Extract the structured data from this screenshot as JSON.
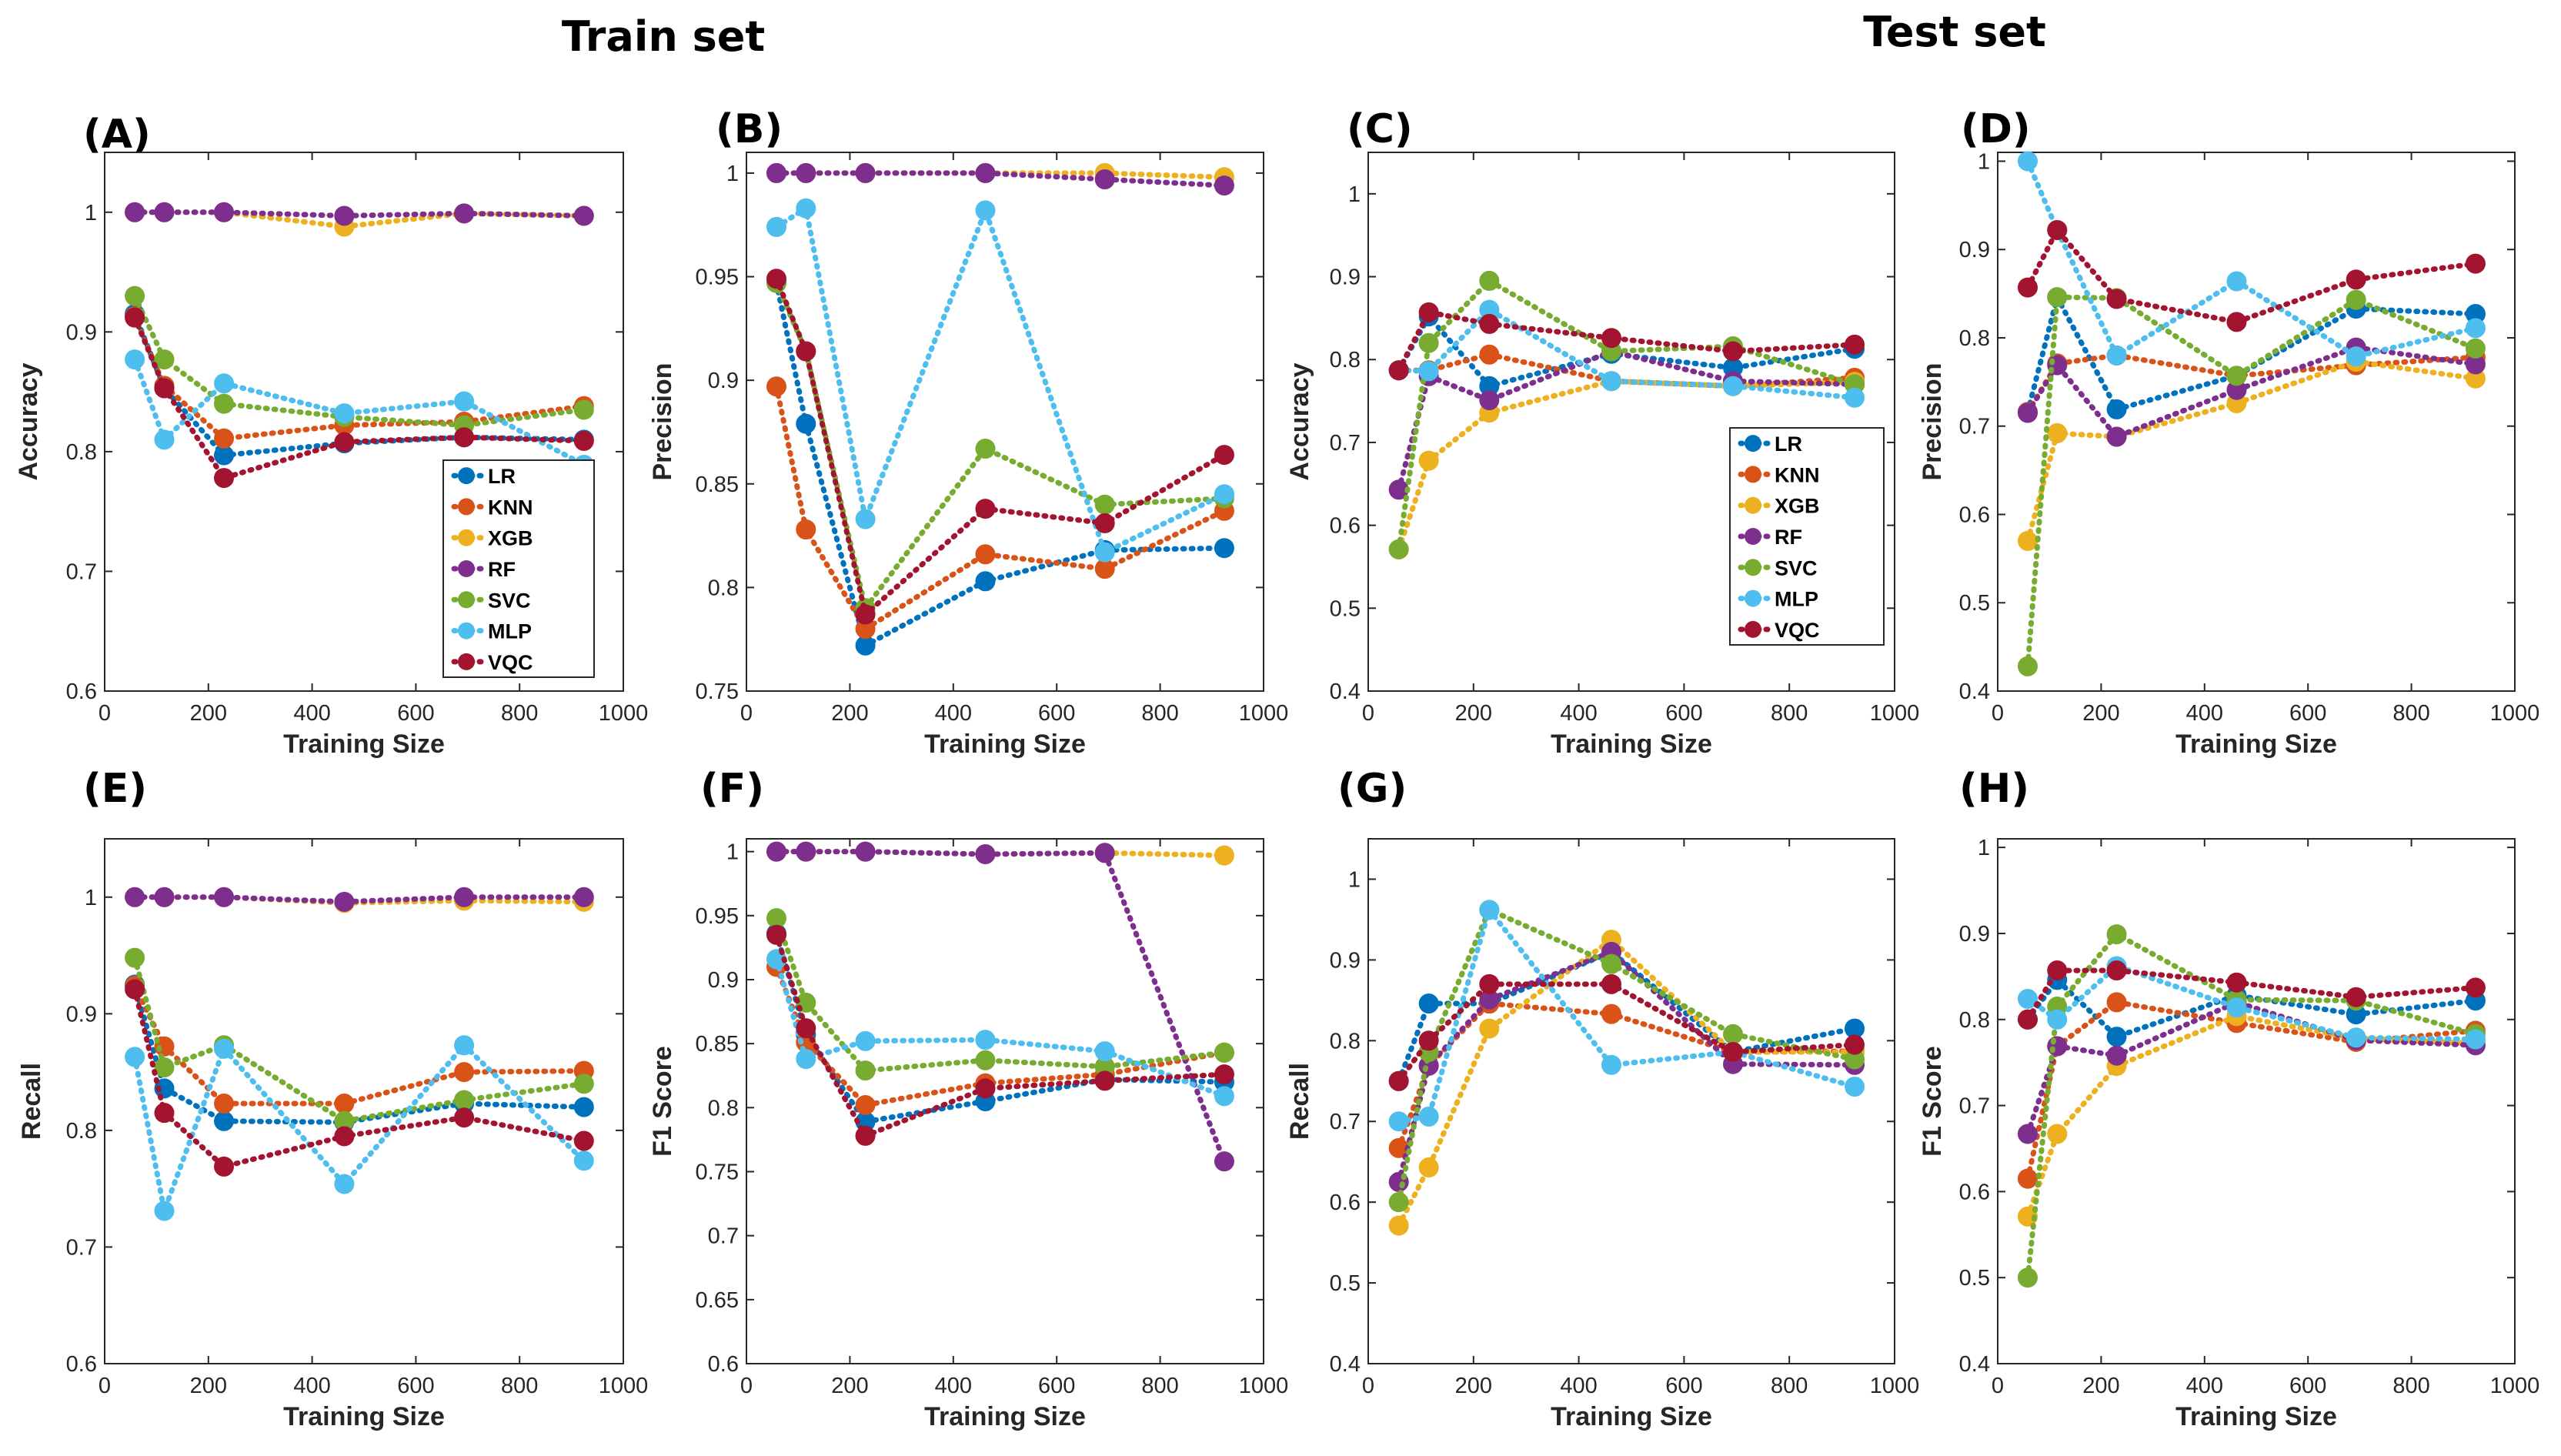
{
  "section_titles": {
    "train": "Train set",
    "test": "Test set"
  },
  "colors": {
    "LR": "#0072BD",
    "KNN": "#D95319",
    "XGB": "#EDB120",
    "RF": "#7E2F8E",
    "SVC": "#77AC30",
    "MLP": "#4DBEEE",
    "VQC": "#A2142F"
  },
  "chart_data": [
    {
      "type": "line",
      "id": "A",
      "label": "(A)",
      "xlabel": "Training Size",
      "ylabel": "Accuracy",
      "xlim": [
        0,
        1000
      ],
      "ylim": [
        0.6,
        1.05
      ],
      "xticks": [
        "0",
        "200",
        "400",
        "600",
        "800",
        "1000"
      ],
      "yticks": [
        "0.6",
        "0.7",
        "0.8",
        "0.9",
        "1"
      ],
      "legend": "lower-right",
      "x": [
        58,
        115,
        230,
        462,
        693,
        924
      ],
      "series": [
        {
          "name": "LR",
          "values": [
            0.915,
            0.853,
            0.797,
            0.807,
            0.812,
            0.81
          ]
        },
        {
          "name": "KNN",
          "values": [
            0.913,
            0.855,
            0.811,
            0.822,
            0.825,
            0.838
          ]
        },
        {
          "name": "XGB",
          "values": [
            1.0,
            1.0,
            1.0,
            0.988,
            0.999,
            0.997
          ]
        },
        {
          "name": "RF",
          "values": [
            1.0,
            1.0,
            1.0,
            0.997,
            0.999,
            0.997
          ]
        },
        {
          "name": "SVC",
          "values": [
            0.93,
            0.877,
            0.84,
            0.829,
            0.822,
            0.835
          ]
        },
        {
          "name": "MLP",
          "values": [
            0.877,
            0.81,
            0.857,
            0.832,
            0.842,
            0.789
          ]
        },
        {
          "name": "VQC",
          "values": [
            0.912,
            0.853,
            0.778,
            0.808,
            0.812,
            0.809
          ]
        }
      ]
    },
    {
      "type": "line",
      "id": "B",
      "label": "(B)",
      "xlabel": "Training Size",
      "ylabel": "Precision",
      "xlim": [
        0,
        1000
      ],
      "ylim": [
        0.75,
        1.01
      ],
      "xticks": [
        "0",
        "200",
        "400",
        "600",
        "800",
        "1000"
      ],
      "yticks": [
        "0.75",
        "0.8",
        "0.85",
        "0.9",
        "0.95",
        "1"
      ],
      "x": [
        58,
        115,
        230,
        462,
        693,
        924
      ],
      "series": [
        {
          "name": "LR",
          "values": [
            0.947,
            0.879,
            0.772,
            0.803,
            0.818,
            0.819
          ]
        },
        {
          "name": "KNN",
          "values": [
            0.897,
            0.828,
            0.78,
            0.816,
            0.809,
            0.837
          ]
        },
        {
          "name": "XGB",
          "values": [
            1.0,
            1.0,
            1.0,
            1.0,
            1.0,
            0.998
          ]
        },
        {
          "name": "RF",
          "values": [
            1.0,
            1.0,
            1.0,
            1.0,
            0.997,
            0.994
          ]
        },
        {
          "name": "SVC",
          "values": [
            0.947,
            0.914,
            0.79,
            0.867,
            0.84,
            0.843
          ]
        },
        {
          "name": "MLP",
          "values": [
            0.974,
            0.983,
            0.833,
            0.982,
            0.817,
            0.845
          ]
        },
        {
          "name": "VQC",
          "values": [
            0.949,
            0.914,
            0.787,
            0.838,
            0.831,
            0.864
          ]
        }
      ]
    },
    {
      "type": "line",
      "id": "C",
      "label": "(C)",
      "xlabel": "Training Size",
      "ylabel": "Accuracy",
      "xlim": [
        0,
        1000
      ],
      "ylim": [
        0.4,
        1.05
      ],
      "xticks": [
        "0",
        "200",
        "400",
        "600",
        "800",
        "1000"
      ],
      "yticks": [
        "0.4",
        "0.5",
        "0.6",
        "0.7",
        "0.8",
        "0.9",
        "1"
      ],
      "legend": "center-right",
      "x": [
        58,
        115,
        230,
        462,
        693,
        924
      ],
      "series": [
        {
          "name": "LR",
          "values": [
            0.787,
            0.852,
            0.768,
            0.807,
            0.79,
            0.813
          ]
        },
        {
          "name": "KNN",
          "values": [
            0.787,
            0.787,
            0.806,
            0.774,
            0.768,
            0.778
          ]
        },
        {
          "name": "XGB",
          "values": [
            0.571,
            0.678,
            0.736,
            0.774,
            0.768,
            0.773
          ]
        },
        {
          "name": "RF",
          "values": [
            0.643,
            0.78,
            0.751,
            0.81,
            0.774,
            0.77
          ]
        },
        {
          "name": "SVC",
          "values": [
            0.571,
            0.82,
            0.895,
            0.81,
            0.816,
            0.77
          ]
        },
        {
          "name": "MLP",
          "values": [
            0.787,
            0.786,
            0.86,
            0.774,
            0.768,
            0.754
          ]
        },
        {
          "name": "VQC",
          "values": [
            0.787,
            0.857,
            0.843,
            0.826,
            0.81,
            0.818
          ]
        }
      ]
    },
    {
      "type": "line",
      "id": "D",
      "label": "(D)",
      "xlabel": "Training Size",
      "ylabel": "Precision",
      "xlim": [
        0,
        1000
      ],
      "ylim": [
        0.4,
        1.01
      ],
      "xticks": [
        "0",
        "200",
        "400",
        "600",
        "800",
        "1000"
      ],
      "yticks": [
        "0.4",
        "0.5",
        "0.6",
        "0.7",
        "0.8",
        "0.9",
        "1"
      ],
      "x": [
        58,
        115,
        230,
        462,
        693,
        924
      ],
      "series": [
        {
          "name": "LR",
          "values": [
            0.716,
            0.846,
            0.719,
            0.757,
            0.833,
            0.827
          ]
        },
        {
          "name": "KNN",
          "values": [
            0.716,
            0.771,
            0.78,
            0.757,
            0.769,
            0.778
          ]
        },
        {
          "name": "XGB",
          "values": [
            0.57,
            0.692,
            0.688,
            0.726,
            0.773,
            0.754
          ]
        },
        {
          "name": "RF",
          "values": [
            0.715,
            0.769,
            0.688,
            0.741,
            0.789,
            0.77
          ]
        },
        {
          "name": "SVC",
          "values": [
            0.428,
            0.846,
            0.845,
            0.757,
            0.843,
            0.788
          ]
        },
        {
          "name": "MLP",
          "values": [
            1.0,
            0.922,
            0.78,
            0.864,
            0.779,
            0.811
          ]
        },
        {
          "name": "VQC",
          "values": [
            0.857,
            0.922,
            0.844,
            0.818,
            0.866,
            0.884
          ]
        }
      ]
    },
    {
      "type": "line",
      "id": "E",
      "label": "(E)",
      "xlabel": "Training Size",
      "ylabel": "Recall",
      "xlim": [
        0,
        1000
      ],
      "ylim": [
        0.6,
        1.05
      ],
      "xticks": [
        "0",
        "200",
        "400",
        "600",
        "800",
        "1000"
      ],
      "yticks": [
        "0.6",
        "0.7",
        "0.8",
        "0.9",
        "1"
      ],
      "x": [
        58,
        115,
        230,
        462,
        693,
        924
      ],
      "series": [
        {
          "name": "LR",
          "values": [
            0.925,
            0.836,
            0.808,
            0.807,
            0.823,
            0.82
          ]
        },
        {
          "name": "KNN",
          "values": [
            0.924,
            0.872,
            0.823,
            0.823,
            0.85,
            0.851
          ]
        },
        {
          "name": "XGB",
          "values": [
            1.0,
            1.0,
            1.0,
            0.995,
            0.997,
            0.996
          ]
        },
        {
          "name": "RF",
          "values": [
            1.0,
            1.0,
            1.0,
            0.996,
            1.0,
            1.0
          ]
        },
        {
          "name": "SVC",
          "values": [
            0.948,
            0.854,
            0.873,
            0.808,
            0.826,
            0.84
          ]
        },
        {
          "name": "MLP",
          "values": [
            0.863,
            0.731,
            0.87,
            0.754,
            0.873,
            0.774
          ]
        },
        {
          "name": "VQC",
          "values": [
            0.921,
            0.815,
            0.769,
            0.795,
            0.811,
            0.791
          ]
        }
      ]
    },
    {
      "type": "line",
      "id": "F",
      "label": "(F)",
      "xlabel": "Training Size",
      "ylabel": "F1 Score",
      "xlim": [
        0,
        1000
      ],
      "ylim": [
        0.6,
        1.01
      ],
      "xticks": [
        "0",
        "200",
        "400",
        "600",
        "800",
        "1000"
      ],
      "yticks": [
        "0.6",
        "0.65",
        "0.7",
        "0.75",
        "0.8",
        "0.85",
        "0.9",
        "0.95",
        "1"
      ],
      "x": [
        58,
        115,
        230,
        462,
        693,
        924
      ],
      "series": [
        {
          "name": "LR",
          "values": [
            0.936,
            0.857,
            0.789,
            0.805,
            0.822,
            0.82
          ]
        },
        {
          "name": "KNN",
          "values": [
            0.91,
            0.851,
            0.802,
            0.819,
            0.826,
            0.843
          ]
        },
        {
          "name": "XGB",
          "values": [
            1.0,
            1.0,
            1.0,
            0.998,
            0.999,
            0.997
          ]
        },
        {
          "name": "RF",
          "values": [
            1.0,
            1.0,
            1.0,
            0.998,
            0.999,
            0.758
          ]
        },
        {
          "name": "SVC",
          "values": [
            0.948,
            0.882,
            0.829,
            0.837,
            0.832,
            0.843
          ]
        },
        {
          "name": "MLP",
          "values": [
            0.916,
            0.838,
            0.852,
            0.853,
            0.844,
            0.809
          ]
        },
        {
          "name": "VQC",
          "values": [
            0.935,
            0.862,
            0.778,
            0.815,
            0.821,
            0.826
          ]
        }
      ]
    },
    {
      "type": "line",
      "id": "G",
      "label": "(G)",
      "xlabel": "Training Size",
      "ylabel": "Recall",
      "xlim": [
        0,
        1000
      ],
      "ylim": [
        0.4,
        1.05
      ],
      "xticks": [
        "0",
        "200",
        "400",
        "600",
        "800",
        "1000"
      ],
      "yticks": [
        "0.4",
        "0.5",
        "0.6",
        "0.7",
        "0.8",
        "0.9",
        "1"
      ],
      "x": [
        58,
        115,
        230,
        462,
        693,
        924
      ],
      "series": [
        {
          "name": "LR",
          "values": [
            0.75,
            0.846,
            0.846,
            0.91,
            0.786,
            0.815
          ]
        },
        {
          "name": "KNN",
          "values": [
            0.667,
            0.769,
            0.846,
            0.833,
            0.786,
            0.787
          ]
        },
        {
          "name": "XGB",
          "values": [
            0.571,
            0.643,
            0.815,
            0.925,
            0.786,
            0.786
          ]
        },
        {
          "name": "RF",
          "values": [
            0.625,
            0.769,
            0.851,
            0.91,
            0.771,
            0.77
          ]
        },
        {
          "name": "SVC",
          "values": [
            0.6,
            0.786,
            0.962,
            0.895,
            0.808,
            0.777
          ]
        },
        {
          "name": "MLP",
          "values": [
            0.7,
            0.706,
            0.962,
            0.77,
            0.786,
            0.743
          ]
        },
        {
          "name": "VQC",
          "values": [
            0.75,
            0.8,
            0.87,
            0.87,
            0.786,
            0.795
          ]
        }
      ]
    },
    {
      "type": "line",
      "id": "H",
      "label": "(H)",
      "xlabel": "Training Size",
      "ylabel": "F1 Score",
      "xlim": [
        0,
        1000
      ],
      "ylim": [
        0.4,
        1.01
      ],
      "xticks": [
        "0",
        "200",
        "400",
        "600",
        "800",
        "1000"
      ],
      "yticks": [
        "0.4",
        "0.5",
        "0.6",
        "0.7",
        "0.8",
        "0.9",
        "1"
      ],
      "x": [
        58,
        115,
        230,
        462,
        693,
        924
      ],
      "series": [
        {
          "name": "LR",
          "values": [
            0.8,
            0.846,
            0.78,
            0.828,
            0.806,
            0.822
          ]
        },
        {
          "name": "KNN",
          "values": [
            0.615,
            0.769,
            0.82,
            0.796,
            0.774,
            0.787
          ]
        },
        {
          "name": "XGB",
          "values": [
            0.571,
            0.667,
            0.746,
            0.804,
            0.778,
            0.772
          ]
        },
        {
          "name": "RF",
          "values": [
            0.667,
            0.769,
            0.758,
            0.82,
            0.776,
            0.77
          ]
        },
        {
          "name": "SVC",
          "values": [
            0.5,
            0.815,
            0.899,
            0.823,
            0.822,
            0.783
          ]
        },
        {
          "name": "MLP",
          "values": [
            0.824,
            0.8,
            0.862,
            0.814,
            0.779,
            0.777
          ]
        },
        {
          "name": "VQC",
          "values": [
            0.8,
            0.857,
            0.857,
            0.843,
            0.826,
            0.837
          ]
        }
      ]
    }
  ]
}
